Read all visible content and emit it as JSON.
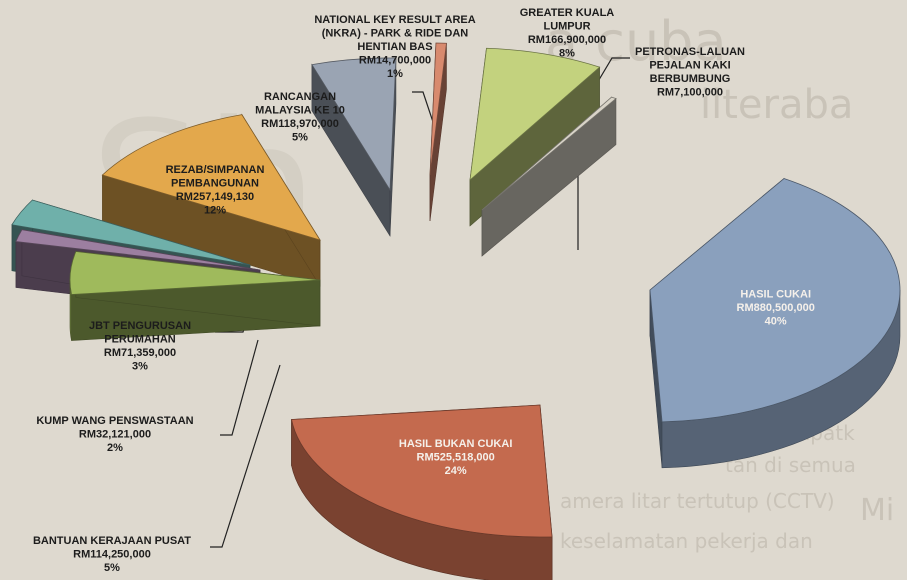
{
  "chart_data": {
    "type": "pie",
    "style": "3d-exploded",
    "currency": "RM",
    "slices": [
      {
        "label": "HASIL CUKAI",
        "label_lines": [
          "HASIL CUKAI"
        ],
        "amount_text": "RM880,500,000",
        "value": 880500000,
        "percent_text": "40%",
        "percent": 40,
        "color": "#8aa0bd",
        "label_style": "inside"
      },
      {
        "label": "HASIL BUKAN CUKAI",
        "label_lines": [
          "HASIL BUKAN CUKAI"
        ],
        "amount_text": "RM525,518,000",
        "value": 525518000,
        "percent_text": "24%",
        "percent": 24,
        "color": "#c46a4e",
        "label_style": "inside"
      },
      {
        "label": "BANTUAN KERAJAAN PUSAT",
        "label_lines": [
          "BANTUAN KERAJAAN PUSAT"
        ],
        "amount_text": "RM114,250,000",
        "value": 114250000,
        "percent_text": "5%",
        "percent": 5,
        "color": "#9fba5c",
        "label_style": "outside"
      },
      {
        "label": "KUMP WANG PENSWASTAAN",
        "label_lines": [
          "KUMP WANG PENSWASTAAN"
        ],
        "amount_text": "RM32,121,000",
        "value": 32121000,
        "percent_text": "2%",
        "percent": 2,
        "color": "#9c7fa0",
        "label_style": "outside"
      },
      {
        "label": "JBT PENGURUSAN PERUMAHAN",
        "label_lines": [
          "JBT PENGURUSAN",
          "PERUMAHAN"
        ],
        "amount_text": "RM71,359,000",
        "value": 71359000,
        "percent_text": "3%",
        "percent": 3,
        "color": "#6fb0aa",
        "label_style": "outside"
      },
      {
        "label": "REZAB/SIMPANAN PEMBANGUNAN",
        "label_lines": [
          "REZAB/SIMPANAN",
          "PEMBANGUNAN"
        ],
        "amount_text": "RM257,149,130",
        "value": 257149130,
        "percent_text": "12%",
        "percent": 12,
        "color": "#e3a84c",
        "label_style": "outside"
      },
      {
        "label": "RANCANGAN MALAYSIA KE 10",
        "label_lines": [
          "RANCANGAN",
          "MALAYSIA  KE 10"
        ],
        "amount_text": "RM118,970,000",
        "value": 118970000,
        "percent_text": "5%",
        "percent": 5,
        "color": "#9aa4b3",
        "label_style": "outside"
      },
      {
        "label": "NATIONAL KEY RESULT AREA (NKRA) - PARK & RIDE DAN HENTIAN BAS",
        "label_lines": [
          "NATIONAL  KEY RESULT AREA",
          "(NKRA) - PARK & RIDE DAN",
          "HENTIAN BAS"
        ],
        "amount_text": "RM14,700,000",
        "value": 14700000,
        "percent_text": "1%",
        "percent": 1,
        "color": "#d88a6e",
        "label_style": "outside"
      },
      {
        "label": "GREATER KUALA LUMPUR",
        "label_lines": [
          "GREATER KUALA",
          "LUMPUR"
        ],
        "amount_text": "RM166,900,000",
        "value": 166900000,
        "percent_text": "8%",
        "percent": 8,
        "color": "#c3d27e",
        "label_style": "outside"
      },
      {
        "label": "PETRONAS-LALUAN PEJALAN KAKI BERBUMBUNG",
        "label_lines": [
          "PETRONAS-LALUAN",
          "PEJALAN KAKI",
          "BERBUMBUNG"
        ],
        "amount_text": "RM7,100,000",
        "value": 7100000,
        "percent_text": "",
        "percent": 0.3,
        "color": "#d9d4c8",
        "label_style": "outside"
      }
    ]
  },
  "background_text": {
    "snippets": [
      "a cuba",
      "ilteraba",
      "n menempatk",
      "tan di semua",
      "amera litar tertutup (CCTV)",
      "keselamatan pekerja dan",
      "Mi"
    ]
  }
}
